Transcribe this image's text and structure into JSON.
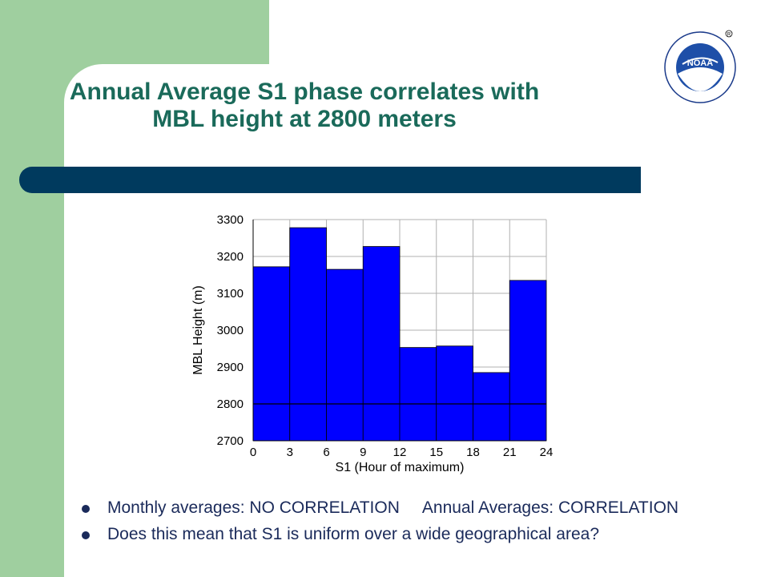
{
  "slide": {
    "title_line1": "Annual Average S1 phase correlates with",
    "title_line2": "MBL height  at 2800 meters",
    "logo_text": "NOAA"
  },
  "bullets": [
    {
      "part1": "Monthly averages: NO CORRELATION",
      "part2": "Annual Averages: CORRELATION"
    },
    {
      "part1": "Does this mean that S1 is uniform over a wide geographical area?",
      "part2": ""
    }
  ],
  "colors": {
    "accent_green": "#9fcf9f",
    "title_teal": "#1a6a5a",
    "divider_navy": "#003a5e",
    "bar_blue": "#0000ff"
  },
  "chart_data": {
    "type": "bar",
    "xlabel": "S1 (Hour of maximum)",
    "ylabel": "MBL Height (m)",
    "x_ticks": [
      0,
      3,
      6,
      9,
      12,
      15,
      18,
      21,
      24
    ],
    "y_ticks": [
      2700,
      2800,
      2900,
      3000,
      3100,
      3200,
      3300
    ],
    "xlim": [
      0,
      24
    ],
    "ylim": [
      2700,
      3300
    ],
    "bin_edges": [
      0,
      3,
      6,
      9,
      12,
      15,
      18,
      21,
      24
    ],
    "values": [
      3172,
      3278,
      3165,
      3227,
      2953,
      2957,
      2885,
      3135
    ],
    "reference_line": 2800,
    "grid": true
  }
}
